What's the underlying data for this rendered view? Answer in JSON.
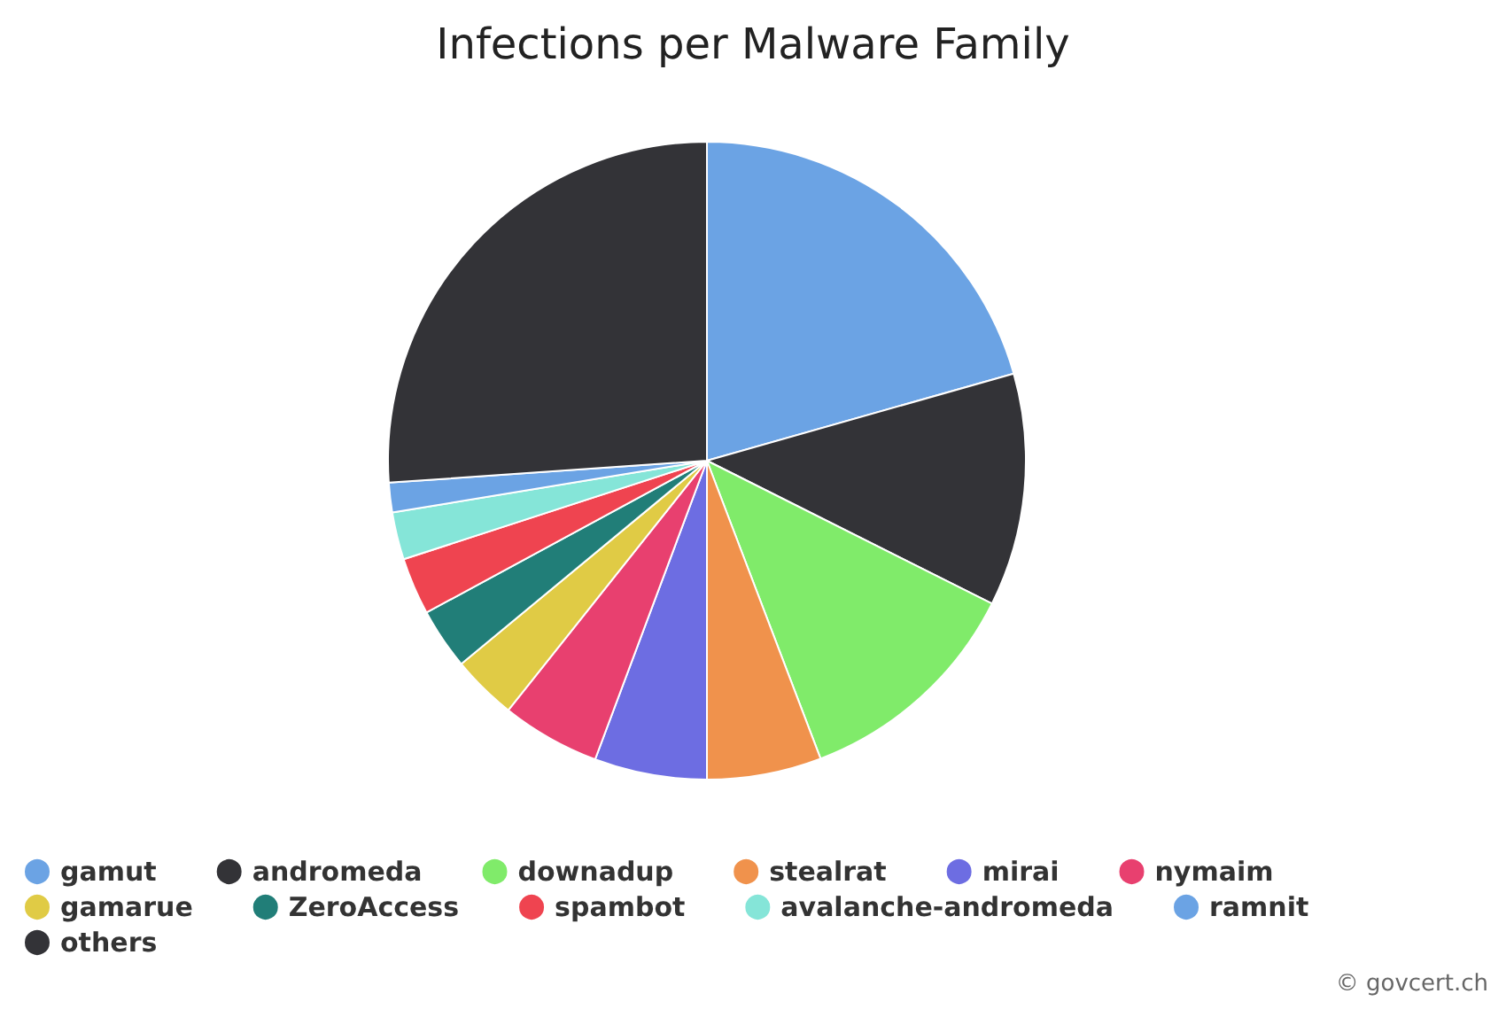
{
  "chart_data": {
    "type": "pie",
    "title": "Infections per Malware Family",
    "categories": [
      "gamut",
      "andromeda",
      "downadup",
      "stealrat",
      "mirai",
      "nymaim",
      "gamarue",
      "ZeroAccess",
      "spambot",
      "avalanche-andromeda",
      "ramnit",
      "others"
    ],
    "values": [
      20.6,
      11.8,
      11.8,
      5.8,
      5.7,
      5.0,
      3.3,
      3.1,
      2.9,
      2.4,
      1.5,
      26.1
    ],
    "colors": [
      "#6ba3e4",
      "#333337",
      "#80eb6a",
      "#f0924c",
      "#6d6de2",
      "#e8406f",
      "#e0cb45",
      "#217e78",
      "#ef4450",
      "#85e5d8",
      "#6ba3e4",
      "#333337"
    ],
    "legend": "bottom left",
    "annotations": [
      "© govcert.ch"
    ]
  }
}
